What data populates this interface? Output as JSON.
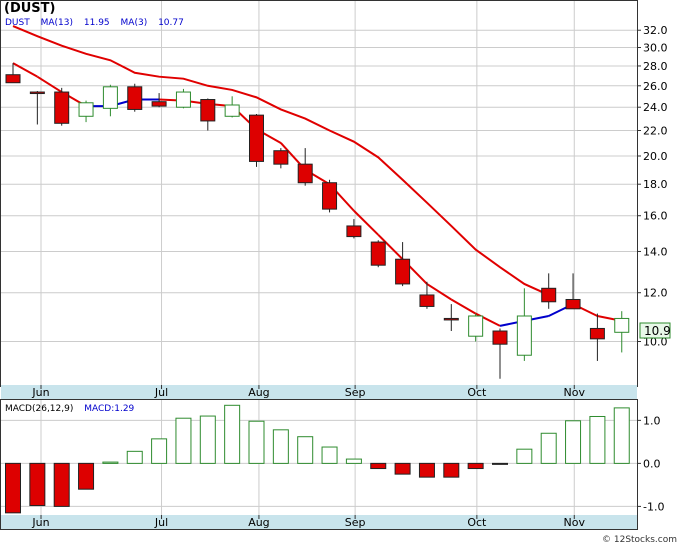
{
  "title": "(DUST)",
  "watermark": "© 12Stocks.com",
  "price_legend": {
    "symbol": "DUST",
    "ma_slow_label": "MA(13)",
    "ma_slow_value": "11.95",
    "ma_fast_label": "MA(3)",
    "ma_fast_value": "10.77",
    "last_price": "10.9"
  },
  "macd_legend": {
    "label": "MACD(26,12,9)",
    "value_label": "MACD:1.29"
  },
  "colors": {
    "up": "#2e8b2e",
    "down": "#dd0000",
    "ma_slow": "#e00000",
    "ma_fast": "#0000cc",
    "axis_band": "#c8e4ec",
    "grid": "#cccccc",
    "label_blue": "#0000cc",
    "last_price_bg": "#e8f8e8"
  },
  "chart_data": [
    {
      "type": "candlestick",
      "scale": "log",
      "ylim": [
        8.5,
        34
      ],
      "y_ticks": [
        "32.0",
        "30.0",
        "28.0",
        "26.0",
        "24.0",
        "22.0",
        "20.0",
        "18.0",
        "16.0",
        "14.0",
        "12.0",
        "10.0"
      ],
      "x_month_labels": [
        "Jun",
        "Jul",
        "Aug",
        "Sep",
        "Oct",
        "Nov"
      ],
      "candles": [
        {
          "open": 27.1,
          "high": 28.3,
          "low": 26.4,
          "close": 26.3
        },
        {
          "open": 25.4,
          "high": 25.5,
          "low": 22.5,
          "close": 25.3
        },
        {
          "open": 25.4,
          "high": 25.8,
          "low": 22.4,
          "close": 22.6
        },
        {
          "open": 23.2,
          "high": 24.6,
          "low": 22.7,
          "close": 24.4
        },
        {
          "open": 23.9,
          "high": 26.1,
          "low": 23.2,
          "close": 25.9
        },
        {
          "open": 25.9,
          "high": 26.2,
          "low": 23.6,
          "close": 23.8
        },
        {
          "open": 24.5,
          "high": 25.3,
          "low": 24.0,
          "close": 24.1
        },
        {
          "open": 24.0,
          "high": 25.7,
          "low": 23.9,
          "close": 25.4
        },
        {
          "open": 24.7,
          "high": 24.8,
          "low": 22.0,
          "close": 22.8
        },
        {
          "open": 23.2,
          "high": 25.0,
          "low": 23.1,
          "close": 24.2
        },
        {
          "open": 23.3,
          "high": 23.4,
          "low": 19.2,
          "close": 19.6
        },
        {
          "open": 20.4,
          "high": 20.6,
          "low": 19.1,
          "close": 19.4
        },
        {
          "open": 19.4,
          "high": 20.6,
          "low": 17.9,
          "close": 18.1
        },
        {
          "open": 18.1,
          "high": 18.3,
          "low": 16.2,
          "close": 16.4
        },
        {
          "open": 15.4,
          "high": 15.8,
          "low": 14.7,
          "close": 14.8
        },
        {
          "open": 14.5,
          "high": 14.6,
          "low": 13.2,
          "close": 13.3
        },
        {
          "open": 13.6,
          "high": 14.5,
          "low": 12.3,
          "close": 12.4
        },
        {
          "open": 11.9,
          "high": 12.5,
          "low": 11.3,
          "close": 11.4
        },
        {
          "open": 10.9,
          "high": 11.5,
          "low": 10.4,
          "close": 10.85
        },
        {
          "open": 10.2,
          "high": 11.1,
          "low": 10.0,
          "close": 11.0
        },
        {
          "open": 10.4,
          "high": 10.5,
          "low": 8.7,
          "close": 9.9
        },
        {
          "open": 9.5,
          "high": 12.2,
          "low": 9.3,
          "close": 11.0
        },
        {
          "open": 12.2,
          "high": 12.9,
          "low": 11.3,
          "close": 11.6
        },
        {
          "open": 11.7,
          "high": 12.9,
          "low": 11.3,
          "close": 11.3
        },
        {
          "open": 10.5,
          "high": 11.1,
          "low": 9.3,
          "close": 10.1
        },
        {
          "open": 10.35,
          "high": 11.2,
          "low": 9.6,
          "close": 10.9
        }
      ],
      "series": [
        {
          "name": "MA(13)",
          "values": [
            32.5,
            31.3,
            30.2,
            29.3,
            28.6,
            27.3,
            26.9,
            26.7,
            26.0,
            25.6,
            24.9,
            23.8,
            23.0,
            22.0,
            21.1,
            19.9,
            18.3,
            16.8,
            15.4,
            14.1,
            13.2,
            12.4,
            11.9
          ]
        },
        {
          "name": "MA(3)",
          "values": [
            28.3,
            26.9,
            25.4,
            24.1,
            24.1,
            24.7,
            24.7,
            24.6,
            24.3,
            24.1,
            22.1,
            21.0,
            19.0,
            18.0,
            16.3,
            14.9,
            13.6,
            12.4,
            11.7,
            11.1,
            10.6,
            10.8,
            11.0,
            11.5,
            11.0,
            10.8
          ]
        }
      ]
    },
    {
      "type": "bar",
      "title": "MACD(26,12,9)",
      "ylim": [
        -1.2,
        1.45
      ],
      "y_ticks": [
        "1.0",
        "0.0",
        "-1.0"
      ],
      "x_month_labels": [
        "Jun",
        "Jul",
        "Aug",
        "Sep",
        "Oct",
        "Nov"
      ],
      "values": [
        -1.15,
        -0.98,
        -1.0,
        -0.6,
        0.03,
        0.28,
        0.57,
        1.05,
        1.1,
        1.35,
        0.98,
        0.78,
        0.62,
        0.38,
        0.1,
        -0.12,
        -0.25,
        -0.32,
        -0.32,
        -0.12,
        -0.02,
        0.33,
        0.7,
        0.99,
        1.09,
        1.29
      ]
    }
  ]
}
